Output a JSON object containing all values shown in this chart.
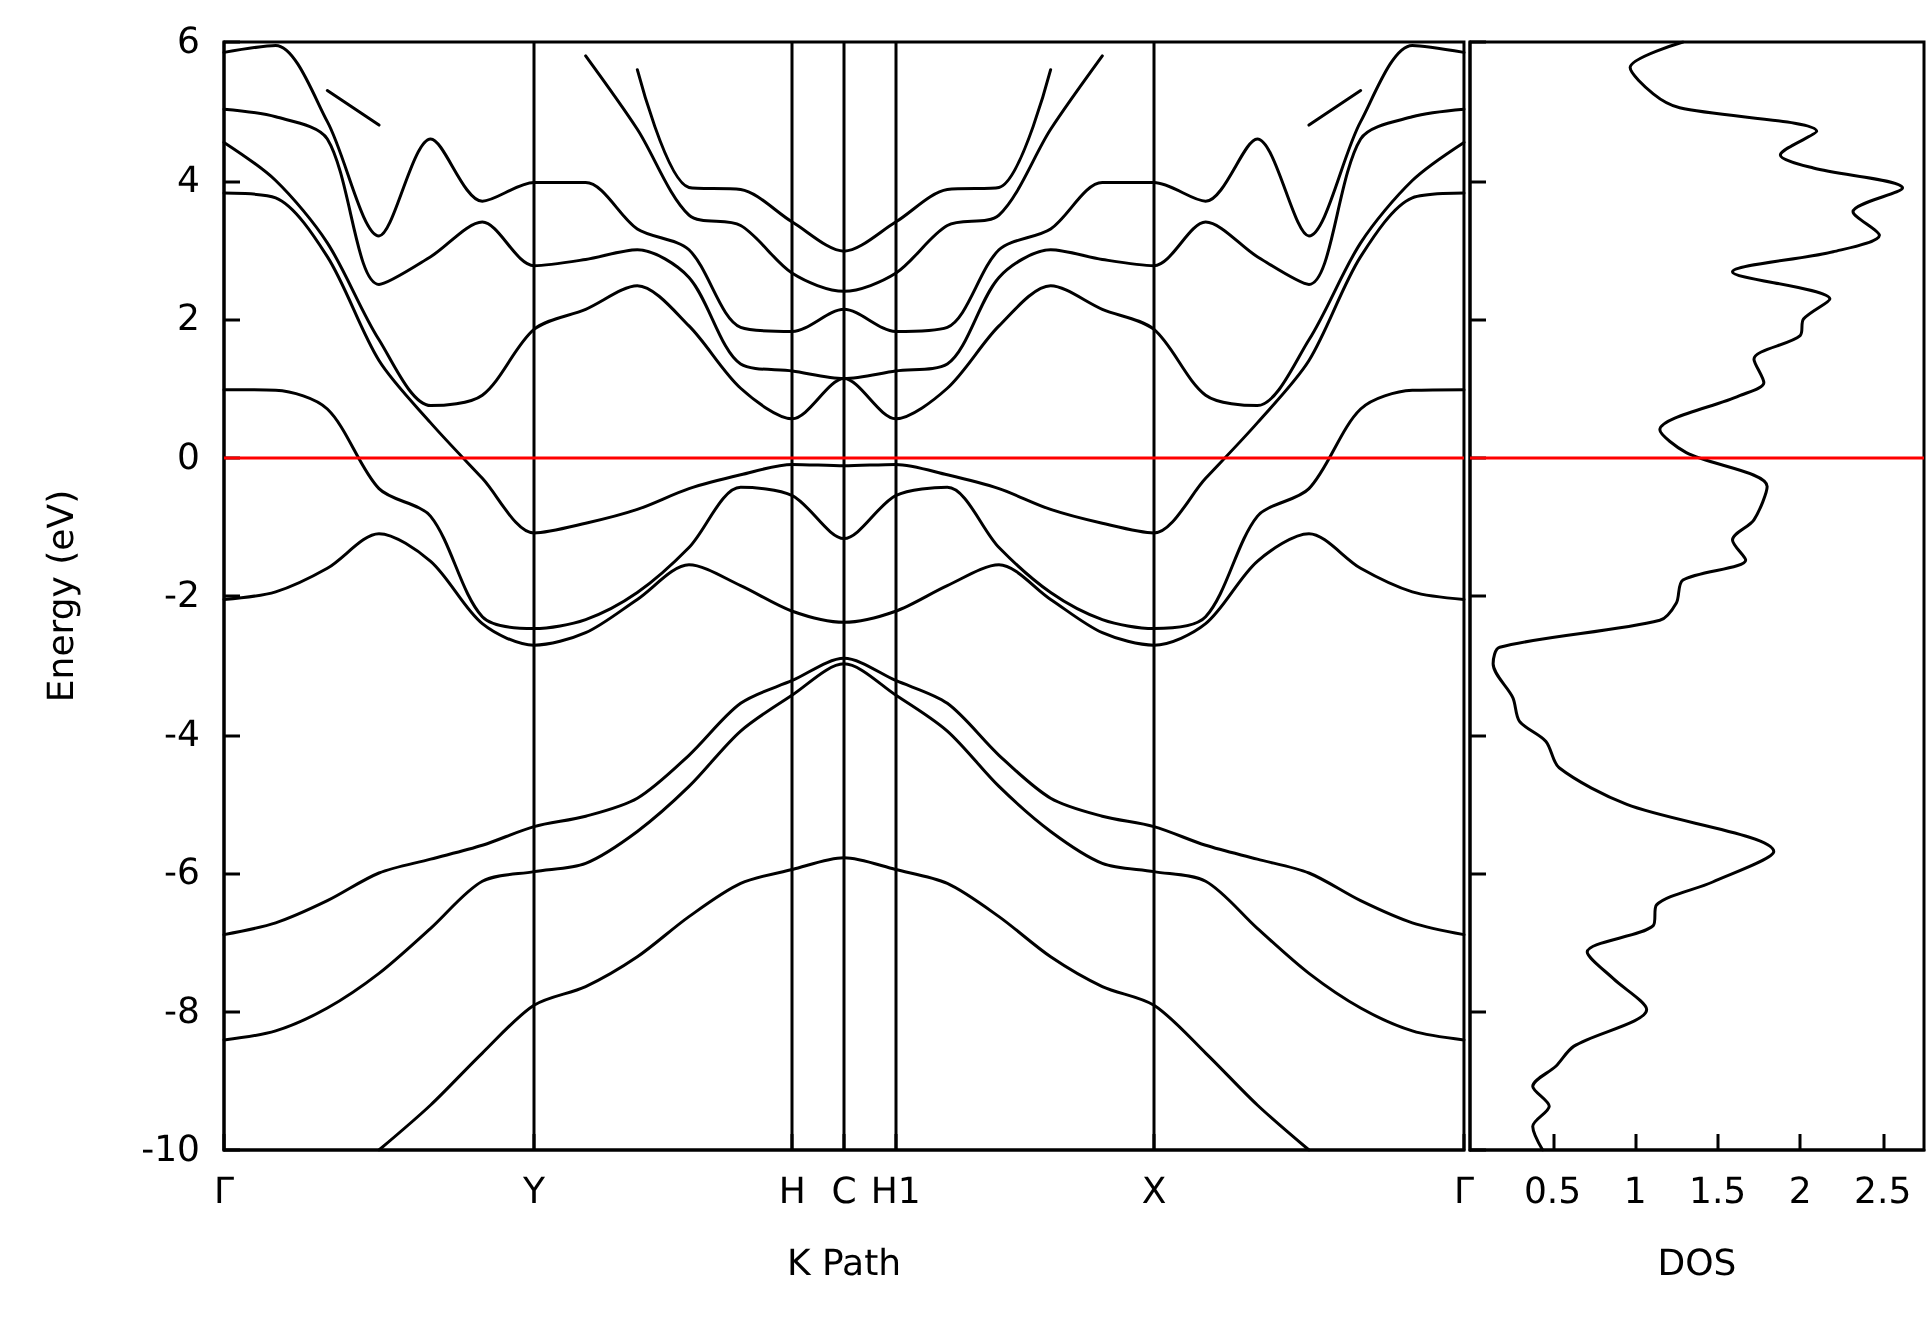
{
  "chart_data": [
    {
      "type": "line",
      "xlabel": "K Path",
      "ylabel": "Energy (eV)",
      "ylim": [
        -10,
        6
      ],
      "yticks": [
        -10,
        -8,
        -6,
        -4,
        -2,
        0,
        2,
        4,
        6
      ],
      "grid": false,
      "marker": "none",
      "line_style": "solid",
      "categories": [
        "Γ",
        null,
        null,
        null,
        null,
        null,
        "Y",
        null,
        null,
        null,
        null,
        "H",
        "C",
        "H1",
        null,
        null,
        null,
        null,
        "X",
        null,
        null,
        null,
        null,
        null,
        "Γ"
      ],
      "ref_lines": [
        {
          "axis": "x",
          "value": "Y",
          "color": "#000000"
        },
        {
          "axis": "x",
          "value": "H",
          "color": "#000000"
        },
        {
          "axis": "x",
          "value": "C",
          "color": "#000000"
        },
        {
          "axis": "x",
          "value": "H1",
          "color": "#000000"
        },
        {
          "axis": "x",
          "value": "X",
          "color": "#000000"
        },
        {
          "axis": "y",
          "value": 0,
          "color": "#ff0000"
        }
      ],
      "series": [
        {
          "color": "#000000",
          "values": [
            null,
            null,
            null,
            -10,
            -9.35,
            -8.6,
            -7.91,
            -7.64,
            -7.21,
            -6.63,
            -6.15,
            -5.95,
            -5.78,
            -5.95,
            -6.15,
            -6.63,
            -7.21,
            -7.64,
            -7.91,
            -8.6,
            -9.35,
            -10,
            null,
            null,
            null
          ]
        },
        {
          "color": "#000000",
          "values": [
            -8.41,
            -8.28,
            -7.95,
            -7.45,
            -6.8,
            -6.12,
            -5.98,
            -5.86,
            -5.4,
            -4.75,
            -3.95,
            -3.43,
            -2.98,
            -3.43,
            -3.95,
            -4.75,
            -5.4,
            -5.86,
            -5.98,
            -6.12,
            -6.8,
            -7.45,
            -7.95,
            -8.28,
            -8.41
          ]
        },
        {
          "color": "#000000",
          "values": [
            -6.89,
            -6.72,
            -6.4,
            -6.0,
            -5.8,
            -5.6,
            -5.33,
            -5.18,
            -4.92,
            -4.3,
            -3.55,
            -3.22,
            -2.9,
            -3.22,
            -3.55,
            -4.3,
            -4.92,
            -5.18,
            -5.33,
            -5.6,
            -5.8,
            -6.0,
            -6.4,
            -6.72,
            -6.89
          ]
        },
        {
          "color": "#000000",
          "values": [
            -2.05,
            -1.94,
            -1.6,
            -1.1,
            -1.5,
            -2.4,
            -2.71,
            -2.53,
            -2.05,
            -1.55,
            -1.85,
            -2.22,
            -2.38,
            -2.22,
            -1.85,
            -1.55,
            -2.05,
            -2.53,
            -2.71,
            -2.4,
            -1.5,
            -1.1,
            -1.6,
            -1.94,
            -2.05
          ]
        },
        {
          "color": "#000000",
          "values": [
            0.98,
            0.97,
            0.7,
            -0.45,
            -0.85,
            -2.3,
            -2.47,
            -2.34,
            -1.95,
            -1.3,
            -0.43,
            -0.55,
            -1.17,
            -0.55,
            -0.43,
            -1.3,
            -1.95,
            -2.34,
            -2.47,
            -2.3,
            -0.85,
            -0.45,
            0.7,
            0.97,
            0.98
          ]
        },
        {
          "color": "#000000",
          "values": [
            3.82,
            3.75,
            2.9,
            1.4,
            0.5,
            -0.3,
            -1.09,
            -0.95,
            -0.75,
            -0.45,
            -0.25,
            -0.1,
            -0.12,
            -0.1,
            -0.25,
            -0.45,
            -0.75,
            -0.95,
            -1.09,
            -0.3,
            0.5,
            1.4,
            2.9,
            3.75,
            3.82
          ]
        },
        {
          "color": "#000000",
          "values": [
            4.55,
            4.0,
            3.1,
            1.7,
            0.75,
            0.9,
            1.85,
            2.14,
            2.48,
            1.9,
            1.0,
            0.56,
            1.14,
            0.56,
            1.0,
            1.9,
            2.48,
            2.14,
            1.85,
            0.9,
            0.75,
            1.7,
            3.1,
            4.0,
            4.55
          ]
        },
        {
          "color": "#000000",
          "values": [
            5.03,
            4.92,
            4.6,
            2.5,
            2.9,
            3.4,
            2.77,
            2.86,
            3.0,
            2.6,
            1.35,
            1.25,
            1.14,
            1.25,
            1.35,
            2.6,
            3.0,
            2.86,
            2.77,
            3.4,
            2.9,
            2.5,
            4.6,
            4.92,
            5.03
          ]
        },
        {
          "color": "#000000",
          "values": [
            5.85,
            5.95,
            4.85,
            3.2,
            4.6,
            3.7,
            3.97,
            3.97,
            3.3,
            3.0,
            1.88,
            1.82,
            2.14,
            1.82,
            1.88,
            3.0,
            3.3,
            3.97,
            3.97,
            3.7,
            4.6,
            3.2,
            4.85,
            5.95,
            5.85
          ]
        },
        {
          "color": "#000000",
          "values": [
            null,
            null,
            5.3,
            4.8,
            null,
            null,
            null,
            5.8,
            4.74,
            3.5,
            3.35,
            2.66,
            2.4,
            2.66,
            3.35,
            3.5,
            4.74,
            5.8,
            null,
            null,
            null,
            4.8,
            5.3,
            null,
            null
          ]
        },
        {
          "color": "#000000",
          "values": [
            null,
            null,
            null,
            null,
            null,
            null,
            null,
            null,
            5.6,
            3.9,
            3.87,
            3.4,
            2.98,
            3.4,
            3.87,
            3.9,
            5.6,
            null,
            null,
            null,
            null,
            null,
            null,
            null,
            null
          ]
        }
      ]
    },
    {
      "type": "line",
      "xlabel": "DOS",
      "xlim": [
        0,
        2.75
      ],
      "ylim": [
        -10,
        6
      ],
      "xticks": [
        0.5,
        1,
        1.5,
        2,
        2.5
      ],
      "yticks": [
        -10,
        -8,
        -6,
        -4,
        -2,
        0,
        2,
        4,
        6
      ],
      "tick_labels": "x",
      "grid": false,
      "marker": "none",
      "line_style": "solid",
      "ref_lines": [
        {
          "axis": "y",
          "value": 0,
          "color": "#ff0000"
        }
      ],
      "x": [
        1.29,
        0.97,
        1.11,
        1.27,
        2.1,
        1.88,
        2.08,
        2.62,
        2.32,
        2.48,
        2.2,
        1.59,
        2.18,
        2.02,
        2.0,
        1.72,
        1.78,
        1.63,
        1.15,
        1.31,
        1.8,
        1.72,
        1.59,
        1.67,
        1.29,
        1.25,
        1.15,
        0.18,
        0.14,
        0.26,
        0.3,
        0.46,
        0.54,
        0.95,
        1.84,
        1.47,
        1.13,
        1.11,
        0.71,
        0.87,
        1.07,
        0.63,
        0.52,
        0.38,
        0.48,
        0.38,
        0.44
      ],
      "color": "#000000",
      "values": [
        6.0,
        5.63,
        5.25,
        5.05,
        4.71,
        4.37,
        4.18,
        3.89,
        3.55,
        3.21,
        2.97,
        2.68,
        2.29,
        2.0,
        1.76,
        1.42,
        1.08,
        0.89,
        0.4,
        0.07,
        -0.42,
        -0.9,
        -1.19,
        -1.48,
        -1.77,
        -2.1,
        -2.35,
        -2.74,
        -2.98,
        -3.47,
        -3.81,
        -4.1,
        -4.48,
        -5.01,
        -5.69,
        -6.13,
        -6.46,
        -6.76,
        -7.14,
        -7.53,
        -7.97,
        -8.5,
        -8.79,
        -9.08,
        -9.37,
        -9.66,
        -10.0
      ]
    }
  ]
}
